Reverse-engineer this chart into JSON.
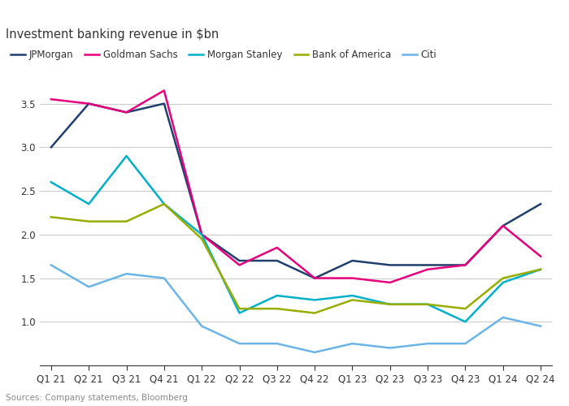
{
  "title": "Investment banking revenue in $bn",
  "source": "Sources: Company statements, Bloomberg",
  "x_labels": [
    "Q1 21",
    "Q2 21",
    "Q3 21",
    "Q4 21",
    "Q1 22",
    "Q2 22",
    "Q3 22",
    "Q4 22",
    "Q1 23",
    "Q2 23",
    "Q3 23",
    "Q4 23",
    "Q1 24",
    "Q2 24"
  ],
  "series": [
    {
      "name": "JPMorgan",
      "color": "#1f3f6e",
      "linewidth": 1.8,
      "values": [
        3.0,
        3.5,
        3.4,
        3.5,
        2.0,
        1.7,
        1.7,
        1.5,
        1.7,
        1.65,
        1.65,
        1.65,
        2.1,
        2.35
      ]
    },
    {
      "name": "Goldman Sachs",
      "color": "#e6007e",
      "linewidth": 1.8,
      "values": [
        3.55,
        3.5,
        3.4,
        3.65,
        2.0,
        1.65,
        1.85,
        1.5,
        1.5,
        1.45,
        1.6,
        1.65,
        2.1,
        1.75
      ]
    },
    {
      "name": "Morgan Stanley",
      "color": "#00b0ca",
      "linewidth": 1.8,
      "values": [
        2.6,
        2.35,
        2.9,
        2.35,
        2.0,
        1.1,
        1.3,
        1.25,
        1.3,
        1.2,
        1.2,
        1.0,
        1.45,
        1.6
      ]
    },
    {
      "name": "Bank of America",
      "color": "#99ac00",
      "linewidth": 1.8,
      "values": [
        2.2,
        2.15,
        2.15,
        2.35,
        1.95,
        1.15,
        1.15,
        1.1,
        1.25,
        1.2,
        1.2,
        1.15,
        1.5,
        1.6
      ]
    },
    {
      "name": "Citi",
      "color": "#6ab4e8",
      "linewidth": 1.8,
      "values": [
        1.65,
        1.4,
        1.55,
        1.5,
        0.95,
        0.75,
        0.75,
        0.65,
        0.75,
        0.7,
        0.75,
        0.75,
        1.05,
        0.95
      ]
    }
  ],
  "ylim": [
    0.5,
    3.85
  ],
  "yticks": [
    1.0,
    1.5,
    2.0,
    2.5,
    3.0,
    3.5
  ],
  "bg_color": "#ffffff",
  "plot_bg": "#ffffff",
  "grid_color": "#cccccc",
  "text_color": "#333333",
  "legend_fontsize": 8.5,
  "axis_fontsize": 8.5,
  "title_fontsize": 10.5
}
